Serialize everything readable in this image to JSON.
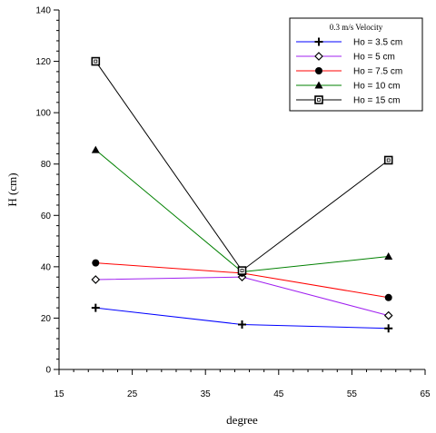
{
  "chart_data": {
    "type": "line",
    "xlabel": "degree",
    "ylabel": "H (cm)",
    "xlim": [
      15,
      65
    ],
    "ylim": [
      0,
      140
    ],
    "x_ticks": [
      15,
      25,
      35,
      45,
      55,
      65
    ],
    "y_ticks": [
      0,
      20,
      40,
      60,
      80,
      100,
      120,
      140
    ],
    "grid": false,
    "legend": {
      "title": "0.3 m/s Velocity",
      "placement": "top-right"
    },
    "x": [
      20,
      40,
      60
    ],
    "series": [
      {
        "name": "Ho = 3.5 cm",
        "values": [
          24,
          17.5,
          16
        ],
        "color": "#0000ff",
        "marker": "plus"
      },
      {
        "name": "Ho = 5 cm",
        "values": [
          35,
          36,
          21
        ],
        "color": "#a020f0",
        "marker": "diamond"
      },
      {
        "name": "Ho = 7.5 cm",
        "values": [
          41.5,
          37.5,
          28
        ],
        "color": "#ff0000",
        "marker": "circle"
      },
      {
        "name": "Ho = 10 cm",
        "values": [
          85.5,
          38,
          44
        ],
        "color": "#008000",
        "marker": "triangle"
      },
      {
        "name": "Ho = 15 cm",
        "values": [
          120,
          38.5,
          81.5
        ],
        "color": "#000000",
        "marker": "square"
      }
    ]
  }
}
